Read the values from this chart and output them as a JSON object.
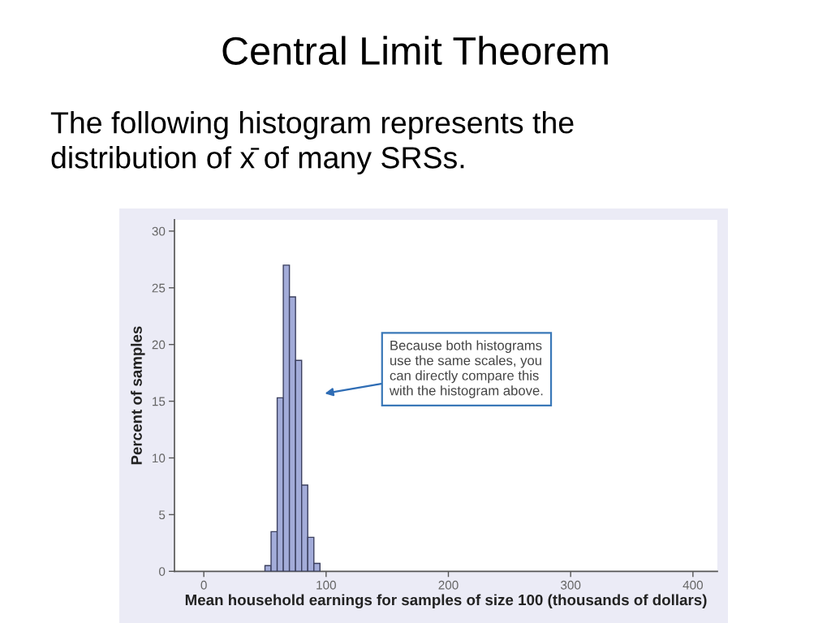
{
  "chart_data": {
    "type": "histogram",
    "title": "Central Limit Theorem",
    "subtitle": "The following histogram represents the\ndistribution of x̄ of many SRSs.",
    "xlabel": "Mean household earnings for samples of size 100 (thousands of dollars)",
    "ylabel": "Percent of samples",
    "bins": [
      50,
      55,
      60,
      65,
      70,
      75,
      80,
      85,
      90,
      95
    ],
    "values": [
      0.5,
      3.5,
      15.3,
      27,
      24.2,
      18.6,
      7.6,
      3,
      0.7
    ],
    "color": "#a3acd9",
    "xlim": [
      -24,
      420
    ],
    "xticks": [
      0,
      100,
      200,
      300,
      400
    ],
    "ylim": [
      0,
      31
    ],
    "yticks": [
      0,
      5,
      10,
      15,
      20,
      25,
      30
    ],
    "annotations": [
      "Because both histograms\nuse the same scales, you\ncan directly compare this\nwith the histogram above."
    ]
  }
}
